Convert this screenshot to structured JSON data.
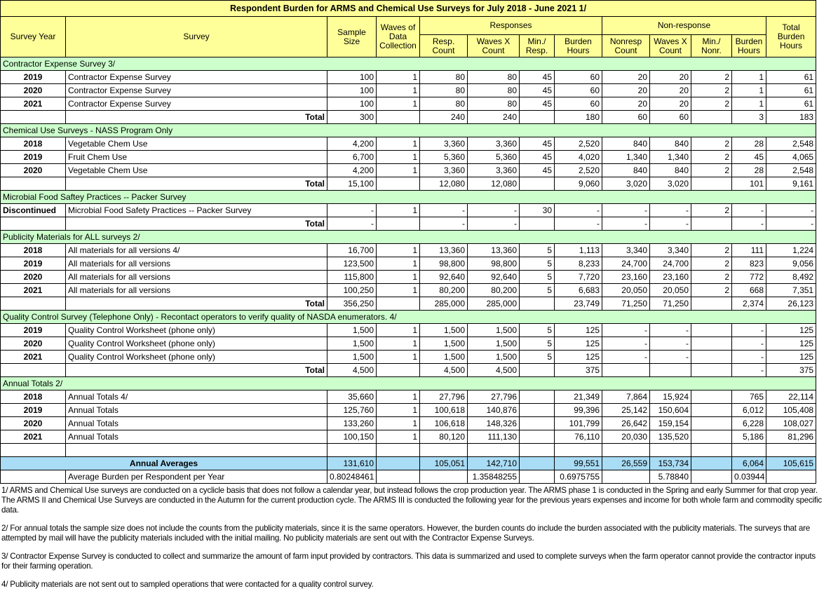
{
  "title": "Respondent Burden for ARMS and Chemical Use Surveys for July 2018 - June 2021 1/",
  "headers": {
    "survey_year": "Survey Year",
    "survey": "Survey",
    "sample_size": "Sample Size",
    "waves": "Waves of Data Collection",
    "responses": "Responses",
    "nonresponse": "Non-response",
    "total_burden": "Total Burden Hours",
    "resp_count": "Resp. Count",
    "waves_x_count": "Waves X Count",
    "min_resp": "Min./ Resp.",
    "burden_hours": "Burden Hours",
    "nonresp_count": "Nonresp Count",
    "waves_x_count_nr": "Waves X Count",
    "min_nonr": "Min./ Nonr.",
    "burden_hours_nr": "Burden Hours"
  },
  "rows": [
    {
      "type": "section",
      "label": "Contractor Expense Survey 3/"
    },
    {
      "type": "data",
      "c": [
        "2019",
        "Contractor Expense Survey",
        "100",
        "1",
        "80",
        "80",
        "45",
        "60",
        "20",
        "20",
        "2",
        "1",
        "61"
      ]
    },
    {
      "type": "data",
      "c": [
        "2020",
        "Contractor Expense Survey",
        "100",
        "1",
        "80",
        "80",
        "45",
        "60",
        "20",
        "20",
        "2",
        "1",
        "61"
      ]
    },
    {
      "type": "data",
      "c": [
        "2021",
        "Contractor Expense Survey",
        "100",
        "1",
        "80",
        "80",
        "45",
        "60",
        "20",
        "20",
        "2",
        "1",
        "61"
      ]
    },
    {
      "type": "total",
      "c": [
        "",
        "Total",
        "300",
        "",
        "240",
        "240",
        "",
        "180",
        "60",
        "60",
        "",
        "3",
        "183"
      ]
    },
    {
      "type": "section",
      "label": "Chemical Use Surveys - NASS Program Only"
    },
    {
      "type": "data",
      "c": [
        "2018",
        "Vegetable Chem Use",
        "4,200",
        "1",
        "3,360",
        "3,360",
        "45",
        "2,520",
        "840",
        "840",
        "2",
        "28",
        "2,548"
      ]
    },
    {
      "type": "data",
      "c": [
        "2019",
        "Fruit Chem Use",
        "6,700",
        "1",
        "5,360",
        "5,360",
        "45",
        "4,020",
        "1,340",
        "1,340",
        "2",
        "45",
        "4,065"
      ]
    },
    {
      "type": "data",
      "c": [
        "2020",
        "Vegetable Chem Use",
        "4,200",
        "1",
        "3,360",
        "3,360",
        "45",
        "2,520",
        "840",
        "840",
        "2",
        "28",
        "2,548"
      ]
    },
    {
      "type": "total",
      "c": [
        "",
        "Total",
        "15,100",
        "",
        "12,080",
        "12,080",
        "",
        "9,060",
        "3,020",
        "3,020",
        "",
        "101",
        "9,161"
      ]
    },
    {
      "type": "section",
      "label": "Microbial Food Saftey Practices -- Packer Survey"
    },
    {
      "type": "disc",
      "c": [
        "Discontinued",
        "Microbial Food Safety Practices -- Packer Survey",
        "-",
        "1",
        "-",
        "-",
        "30",
        "-",
        "-",
        "-",
        "2",
        "-",
        "-"
      ]
    },
    {
      "type": "total",
      "c": [
        "",
        "Total",
        "-",
        "",
        "-",
        "-",
        "",
        "-",
        "-",
        "-",
        "",
        "-",
        "-"
      ]
    },
    {
      "type": "section",
      "label": "Publicity Materials for ALL surveys 2/"
    },
    {
      "type": "data",
      "c": [
        "2018",
        "All materials for all versions 4/",
        "16,700",
        "1",
        "13,360",
        "13,360",
        "5",
        "1,113",
        "3,340",
        "3,340",
        "2",
        "111",
        "1,224"
      ]
    },
    {
      "type": "data",
      "c": [
        "2019",
        "All materials for all versions",
        "123,500",
        "1",
        "98,800",
        "98,800",
        "5",
        "8,233",
        "24,700",
        "24,700",
        "2",
        "823",
        "9,056"
      ]
    },
    {
      "type": "data",
      "c": [
        "2020",
        "All materials for all versions",
        "115,800",
        "1",
        "92,640",
        "92,640",
        "5",
        "7,720",
        "23,160",
        "23,160",
        "2",
        "772",
        "8,492"
      ]
    },
    {
      "type": "data",
      "c": [
        "2021",
        "All materials for all versions",
        "100,250",
        "1",
        "80,200",
        "80,200",
        "5",
        "6,683",
        "20,050",
        "20,050",
        "2",
        "668",
        "7,351"
      ]
    },
    {
      "type": "total",
      "c": [
        "",
        "Total",
        "356,250",
        "",
        "285,000",
        "285,000",
        "",
        "23,749",
        "71,250",
        "71,250",
        "",
        "2,374",
        "26,123"
      ]
    },
    {
      "type": "section",
      "label": "Quality Control Survey (Telephone Only) - Recontact operators to verify quality of NASDA enumerators. 4/"
    },
    {
      "type": "data",
      "c": [
        "2019",
        "Quality Control Worksheet (phone only)",
        "1,500",
        "1",
        "1,500",
        "1,500",
        "5",
        "125",
        "-",
        "-",
        "",
        "-",
        "125"
      ]
    },
    {
      "type": "data",
      "c": [
        "2020",
        "Quality Control Worksheet (phone only)",
        "1,500",
        "1",
        "1,500",
        "1,500",
        "5",
        "125",
        "-",
        "-",
        "",
        "-",
        "125"
      ]
    },
    {
      "type": "data",
      "c": [
        "2021",
        "Quality Control Worksheet (phone only)",
        "1,500",
        "1",
        "1,500",
        "1,500",
        "5",
        "125",
        "-",
        "-",
        "",
        "-",
        "125"
      ]
    },
    {
      "type": "total",
      "c": [
        "",
        "Total",
        "4,500",
        "",
        "4,500",
        "4,500",
        "",
        "375",
        "",
        "",
        "",
        "-",
        "375"
      ]
    },
    {
      "type": "section",
      "label": "Annual Totals 2/"
    },
    {
      "type": "data",
      "c": [
        "2018",
        "Annual Totals 4/",
        "35,660",
        "1",
        "27,796",
        "27,796",
        "",
        "21,349",
        "7,864",
        "15,924",
        "",
        "765",
        "22,114"
      ]
    },
    {
      "type": "data",
      "c": [
        "2019",
        "Annual Totals",
        "125,760",
        "1",
        "100,618",
        "140,876",
        "",
        "99,396",
        "25,142",
        "150,604",
        "",
        "6,012",
        "105,408"
      ]
    },
    {
      "type": "data",
      "c": [
        "2020",
        "Annual Totals",
        "133,260",
        "1",
        "106,618",
        "148,326",
        "",
        "101,799",
        "26,642",
        "159,154",
        "",
        "6,228",
        "108,027"
      ]
    },
    {
      "type": "data",
      "c": [
        "2021",
        "Annual Totals",
        "100,150",
        "1",
        "80,120",
        "111,130",
        "",
        "76,110",
        "20,030",
        "135,520",
        "",
        "5,186",
        "81,296"
      ]
    },
    {
      "type": "data",
      "c": [
        "",
        "",
        "",
        "",
        "",
        "",
        "",
        "",
        "",
        "",
        "",
        "",
        ""
      ]
    },
    {
      "type": "avg",
      "label": "Annual Averages",
      "c": [
        "131,610",
        "",
        "105,051",
        "142,710",
        "",
        "99,551",
        "26,559",
        "153,734",
        "",
        "6,064",
        "105,615"
      ]
    },
    {
      "type": "ratio",
      "c": [
        "",
        "Average Burden per Respondent per Year",
        "0.80248461",
        "",
        "",
        "1.35848255",
        "",
        "0.6975755",
        "",
        "5.78840",
        "",
        "0.03944",
        ""
      ]
    }
  ],
  "footnotes": [
    "1/ ARMS and Chemical Use surveys are conducted on a cyclicle basis that does not follow a calendar year, but instead follows the crop production year.  The ARMS phase 1 is conducted in the Spring and early Summer for that crop year.  The ARMS II and Chemical Use Surveys are conducted in the Autumn for the current production cycle. The ARMS III is conducted the following year for the previous years expenses and income for  both whole farm and commodity specific data.",
    "2/ For annual totals the sample size does not include the counts from the publicity materials, since it is the same operators.  However, the burden counts do include the burden associated with the publicity materials. The surveys that are attempted by mail will have the publicity materials included with the initial mailing.  No publicity materials are sent out with the Contractor Expense Surveys.",
    "3/ Contractor Expense Survey is conducted to collect and summarize the amount of farm input provided by contractors.  This data is summarized and used to complete surveys when the farm operator cannot provide the contractor inputs for their farming operation.",
    "4/ Publicity materials are not sent out to sampled operations that were contacted for a quality control survey."
  ]
}
